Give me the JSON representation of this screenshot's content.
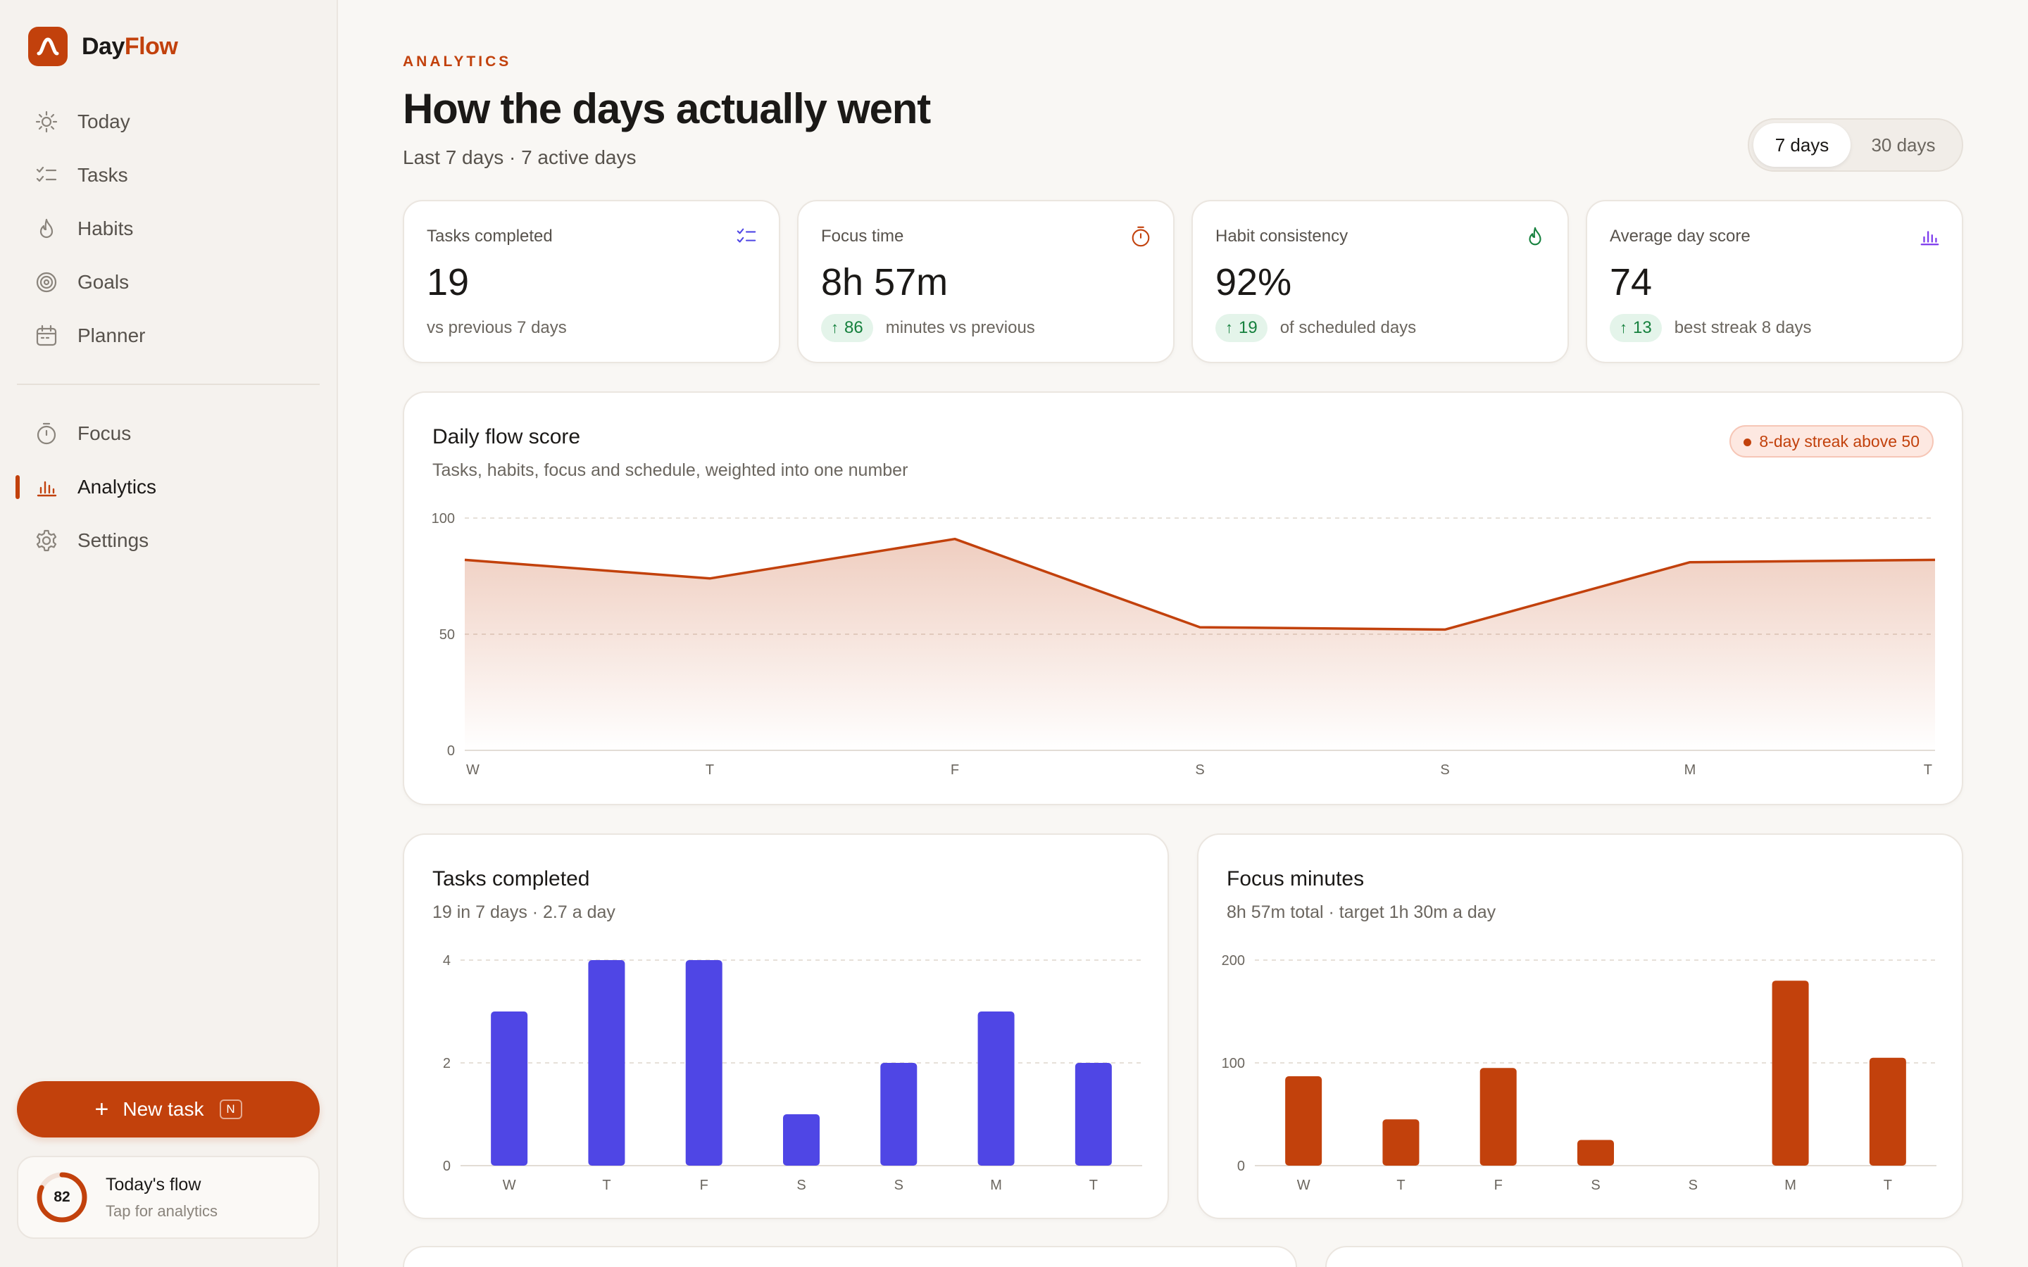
{
  "app": {
    "name_prefix": "Day",
    "name_accent": "Flow"
  },
  "sidebar": {
    "nav_primary": [
      {
        "label": "Today",
        "icon": "sun-icon"
      },
      {
        "label": "Tasks",
        "icon": "checklist-icon"
      },
      {
        "label": "Habits",
        "icon": "flame-icon"
      },
      {
        "label": "Goals",
        "icon": "target-icon"
      },
      {
        "label": "Planner",
        "icon": "calendar-icon"
      }
    ],
    "nav_secondary": [
      {
        "label": "Focus",
        "icon": "timer-icon"
      },
      {
        "label": "Analytics",
        "icon": "bar-chart-icon",
        "active": true
      },
      {
        "label": "Settings",
        "icon": "gear-icon"
      }
    ],
    "new_task": {
      "label": "New task",
      "shortcut": "N"
    },
    "flow_card": {
      "score": "82",
      "score_fraction": 0.82,
      "title": "Today's flow",
      "subtitle": "Tap for analytics"
    }
  },
  "header": {
    "eyebrow": "ANALYTICS",
    "title": "How the days actually went",
    "subtitle": "Last 7 days · 7 active days",
    "range_toggle": {
      "options": [
        "7 days",
        "30 days"
      ],
      "selected": "7 days"
    }
  },
  "stats": [
    {
      "label": "Tasks completed",
      "value": "19",
      "delta": "",
      "note": "vs previous 7 days",
      "icon": "checklist-icon",
      "icon_color": "#4f46e5"
    },
    {
      "label": "Focus time",
      "value": "8h 57m",
      "delta": "86",
      "note": "minutes vs previous",
      "icon": "timer-icon",
      "icon_color": "#c2410c"
    },
    {
      "label": "Habit consistency",
      "value": "92%",
      "delta": "19",
      "note": "of scheduled days",
      "icon": "flame-icon",
      "icon_color": "#15803d"
    },
    {
      "label": "Average day score",
      "value": "74",
      "delta": "13",
      "note": "best streak 8 days",
      "icon": "bar-chart-icon",
      "icon_color": "#7c3aed"
    }
  ],
  "flow_chart": {
    "title": "Daily flow score",
    "subtitle": "Tasks, habits, focus and schedule, weighted into one number",
    "badge": "8-day streak above 50",
    "chart_data": {
      "type": "area",
      "categories": [
        "W",
        "T",
        "F",
        "S",
        "S",
        "M",
        "T"
      ],
      "values": [
        82,
        74,
        91,
        53,
        52,
        81,
        82
      ],
      "ylim": [
        0,
        100
      ],
      "yticks": [
        0,
        50,
        100
      ],
      "grid": true,
      "color": "#c2410c"
    }
  },
  "tasks_chart": {
    "title": "Tasks completed",
    "subtitle": "19 in 7 days · 2.7 a day",
    "chart_data": {
      "type": "bar",
      "categories": [
        "W",
        "T",
        "F",
        "S",
        "S",
        "M",
        "T"
      ],
      "values": [
        3,
        4,
        4,
        1,
        2,
        3,
        2
      ],
      "ylim": [
        0,
        4
      ],
      "yticks": [
        0,
        2,
        4
      ],
      "grid": true,
      "color": "#4f46e5"
    }
  },
  "focus_chart": {
    "title": "Focus minutes",
    "subtitle": "8h 57m total · target 1h 30m a day",
    "chart_data": {
      "type": "bar",
      "categories": [
        "W",
        "T",
        "F",
        "S",
        "S",
        "M",
        "T"
      ],
      "values": [
        87,
        45,
        95,
        25,
        0,
        180,
        105
      ],
      "ylim": [
        0,
        200
      ],
      "yticks": [
        0,
        100,
        200
      ],
      "grid": true,
      "color": "#c2410c"
    }
  }
}
